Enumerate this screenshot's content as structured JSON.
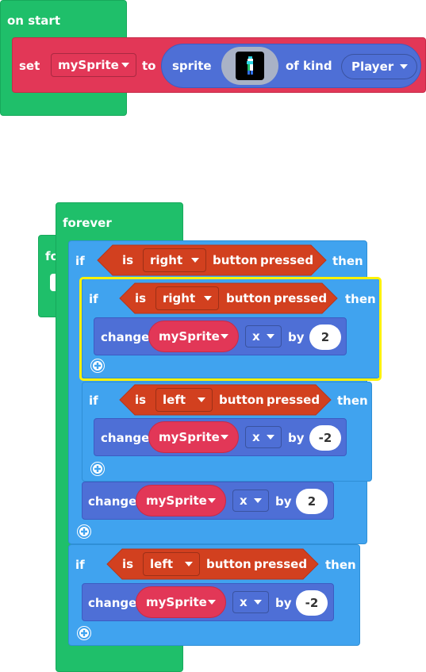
{
  "on_start": {
    "label": "on start",
    "set_block": {
      "set_label": "set",
      "variable": "mySprite",
      "to_label": "to",
      "sprite_label": "sprite",
      "of_kind_label": "of kind",
      "kind": "Player"
    }
  },
  "hidden_block": {
    "label": "fo"
  },
  "forever": {
    "label": "forever",
    "outer_if_right": {
      "if_label": "if",
      "is_label": "is",
      "button": "right",
      "button_label": "button",
      "pressed_label": "pressed",
      "then_label": "then",
      "inner_if_right": {
        "if_label": "if",
        "is_label": "is",
        "button": "right",
        "button_label": "button",
        "pressed_label": "pressed",
        "then_label": "then",
        "change": {
          "change_label": "change",
          "variable": "mySprite",
          "axis": "x",
          "by_label": "by",
          "value": "2"
        }
      },
      "inner_if_left": {
        "if_label": "if",
        "is_label": "is",
        "button": "left",
        "button_label": "button",
        "pressed_label": "pressed",
        "then_label": "then",
        "change": {
          "change_label": "change",
          "variable": "mySprite",
          "axis": "x",
          "by_label": "by",
          "value": "-2"
        }
      },
      "change": {
        "change_label": "change",
        "variable": "mySprite",
        "axis": "x",
        "by_label": "by",
        "value": "2"
      }
    },
    "outer_if_left": {
      "if_label": "if",
      "is_label": "is",
      "button": "left",
      "button_label": "button",
      "pressed_label": "pressed",
      "then_label": "then",
      "change": {
        "change_label": "change",
        "variable": "mySprite",
        "axis": "x",
        "by_label": "by",
        "value": "-2"
      }
    }
  },
  "colors": {
    "events_green": "#1fbf6a",
    "logic_blue": "#40a3ef",
    "sprites_royal": "#4e6fd6",
    "variables_red": "#e23757",
    "controller_orange": "#d2401f",
    "selection_yellow": "#fff200"
  }
}
